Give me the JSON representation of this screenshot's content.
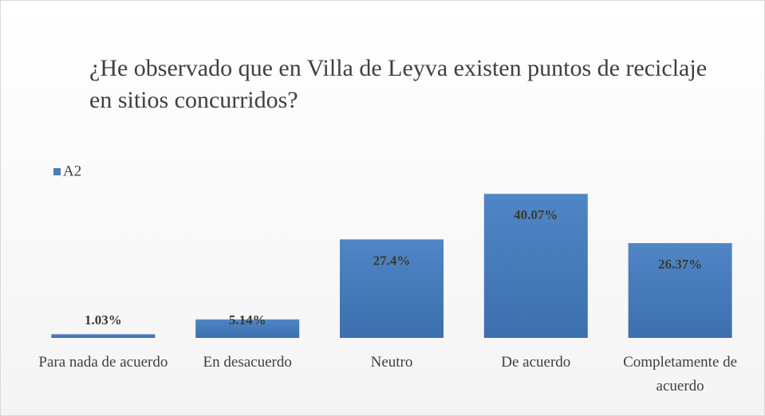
{
  "chart_data": {
    "type": "bar",
    "title": "¿He observado que en Villa de Leyva existen puntos de reciclaje en sitios concurridos?",
    "categories": [
      "Para nada de acuerdo",
      "En desacuerdo",
      "Neutro",
      "De acuerdo",
      "Completamente de acuerdo"
    ],
    "series": [
      {
        "name": "A2",
        "color": "#4a7ebb",
        "values": [
          1.03,
          5.14,
          27.4,
          40.07,
          26.37
        ],
        "value_labels": [
          "1.03%",
          "5.14%",
          "27.4%",
          "40.07%",
          "26.37%"
        ]
      }
    ],
    "ylim": [
      0,
      45
    ],
    "legend": "top-left"
  }
}
